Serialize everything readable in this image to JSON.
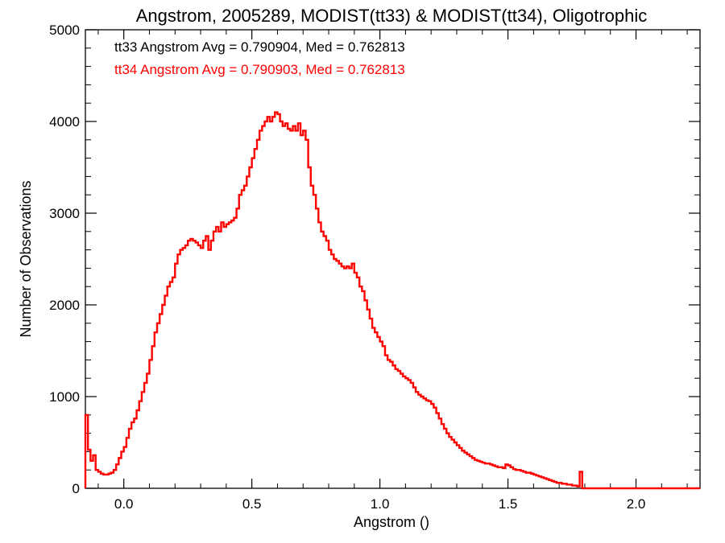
{
  "chart_data": {
    "type": "line",
    "title": "Angstrom, 2005289, MODIST(tt33) & MODIST(tt34), Oligotrophic",
    "xlabel": "Angstrom ()",
    "ylabel": "Number of Observations",
    "xlim": [
      -0.15,
      2.25
    ],
    "ylim": [
      0,
      5000
    ],
    "x_ticks": [
      0.0,
      0.5,
      1.0,
      1.5,
      2.0
    ],
    "x_tick_labels": [
      "0.0",
      "0.5",
      "1.0",
      "1.5",
      "2.0"
    ],
    "y_ticks": [
      0,
      1000,
      2000,
      3000,
      4000,
      5000
    ],
    "y_tick_labels": [
      "0",
      "1000",
      "2000",
      "3000",
      "4000",
      "5000"
    ],
    "grid": false,
    "style": "step histogram",
    "annotations": [
      {
        "text": "tt33 Angstrom Avg = 0.790904, Med = 0.762813",
        "color": "#000000"
      },
      {
        "text": "tt34 Angstrom Avg = 0.790903, Med = 0.762813",
        "color": "#ff0000"
      }
    ],
    "series": [
      {
        "color": "#ff0000",
        "x": [
          -0.15,
          -0.14,
          -0.13,
          -0.12,
          -0.11,
          -0.1,
          -0.09,
          -0.08,
          -0.07,
          -0.06,
          -0.05,
          -0.04,
          -0.03,
          -0.02,
          -0.01,
          0.0,
          0.01,
          0.02,
          0.03,
          0.04,
          0.05,
          0.06,
          0.07,
          0.08,
          0.09,
          0.1,
          0.11,
          0.12,
          0.13,
          0.14,
          0.15,
          0.16,
          0.17,
          0.18,
          0.19,
          0.2,
          0.21,
          0.22,
          0.23,
          0.24,
          0.25,
          0.26,
          0.27,
          0.28,
          0.29,
          0.3,
          0.31,
          0.32,
          0.33,
          0.34,
          0.35,
          0.36,
          0.37,
          0.38,
          0.39,
          0.4,
          0.41,
          0.42,
          0.43,
          0.44,
          0.45,
          0.46,
          0.47,
          0.48,
          0.49,
          0.5,
          0.51,
          0.52,
          0.53,
          0.54,
          0.55,
          0.56,
          0.57,
          0.58,
          0.59,
          0.6,
          0.61,
          0.62,
          0.63,
          0.64,
          0.65,
          0.66,
          0.67,
          0.68,
          0.69,
          0.7,
          0.71,
          0.72,
          0.73,
          0.74,
          0.75,
          0.76,
          0.77,
          0.78,
          0.79,
          0.8,
          0.81,
          0.82,
          0.83,
          0.84,
          0.85,
          0.86,
          0.87,
          0.88,
          0.89,
          0.9,
          0.91,
          0.92,
          0.93,
          0.94,
          0.95,
          0.96,
          0.97,
          0.98,
          0.99,
          1.0,
          1.01,
          1.02,
          1.03,
          1.04,
          1.05,
          1.06,
          1.07,
          1.08,
          1.09,
          1.1,
          1.11,
          1.12,
          1.13,
          1.14,
          1.15,
          1.16,
          1.17,
          1.18,
          1.19,
          1.2,
          1.21,
          1.22,
          1.23,
          1.24,
          1.25,
          1.26,
          1.27,
          1.28,
          1.29,
          1.3,
          1.31,
          1.32,
          1.33,
          1.34,
          1.35,
          1.36,
          1.37,
          1.38,
          1.39,
          1.4,
          1.41,
          1.42,
          1.43,
          1.44,
          1.45,
          1.46,
          1.47,
          1.48,
          1.49,
          1.5,
          1.51,
          1.52,
          1.53,
          1.54,
          1.55,
          1.56,
          1.57,
          1.58,
          1.59,
          1.6,
          1.61,
          1.62,
          1.63,
          1.64,
          1.65,
          1.66,
          1.67,
          1.68,
          1.69,
          1.7,
          1.71,
          1.72,
          1.73,
          1.74,
          1.75,
          1.76,
          1.77,
          1.78,
          1.79,
          1.8,
          1.81,
          1.82,
          1.83,
          1.84,
          1.85,
          1.86,
          1.87,
          1.88,
          1.89,
          1.9,
          1.91,
          1.92,
          1.93,
          1.94,
          1.95,
          1.96,
          1.97,
          1.98,
          1.99,
          2.0,
          2.01,
          2.02,
          2.03,
          2.04,
          2.05,
          2.06,
          2.07,
          2.08,
          2.09,
          2.1,
          2.11,
          2.12,
          2.13,
          2.14,
          2.15,
          2.16,
          2.17,
          2.18,
          2.19,
          2.2,
          2.21,
          2.22,
          2.23,
          2.24
        ],
        "values": [
          800,
          420,
          300,
          360,
          200,
          180,
          160,
          150,
          150,
          160,
          170,
          200,
          260,
          330,
          400,
          450,
          550,
          650,
          720,
          760,
          850,
          950,
          1050,
          1150,
          1250,
          1400,
          1550,
          1700,
          1800,
          1900,
          2000,
          2100,
          2200,
          2250,
          2300,
          2450,
          2550,
          2600,
          2620,
          2650,
          2700,
          2720,
          2700,
          2680,
          2650,
          2620,
          2700,
          2750,
          2600,
          2700,
          2800,
          2850,
          2800,
          2900,
          2850,
          2880,
          2900,
          2920,
          2950,
          3050,
          3200,
          3250,
          3300,
          3400,
          3500,
          3600,
          3700,
          3800,
          3900,
          3950,
          4000,
          4050,
          4000,
          4050,
          4100,
          4080,
          4000,
          3950,
          3980,
          3920,
          3900,
          3950,
          3900,
          3980,
          3850,
          3900,
          3800,
          3500,
          3300,
          3200,
          3050,
          2900,
          2800,
          2750,
          2700,
          2600,
          2550,
          2500,
          2480,
          2450,
          2420,
          2400,
          2420,
          2400,
          2450,
          2350,
          2300,
          2200,
          2150,
          2050,
          1950,
          1850,
          1750,
          1700,
          1650,
          1600,
          1550,
          1450,
          1400,
          1380,
          1340,
          1300,
          1280,
          1250,
          1220,
          1200,
          1180,
          1150,
          1100,
          1050,
          1020,
          1000,
          980,
          960,
          950,
          920,
          880,
          820,
          760,
          700,
          650,
          600,
          560,
          530,
          500,
          470,
          440,
          410,
          390,
          370,
          350,
          330,
          310,
          300,
          290,
          280,
          270,
          270,
          260,
          250,
          240,
          230,
          230,
          220,
          260,
          250,
          230,
          210,
          200,
          200,
          190,
          180,
          170,
          170,
          160,
          150,
          140,
          130,
          120,
          110,
          100,
          90,
          80,
          70,
          60,
          60,
          50,
          50,
          40,
          40,
          30,
          30,
          20,
          180,
          0,
          0,
          0,
          0,
          0,
          0,
          0,
          0,
          0,
          0,
          0,
          0,
          0,
          0,
          0,
          0,
          0,
          0,
          0,
          0,
          0,
          0,
          0,
          0,
          0,
          0,
          0,
          0,
          0,
          0,
          0,
          0,
          0,
          0,
          0,
          0,
          0,
          0,
          0,
          0,
          0,
          0,
          0,
          0,
          0,
          0
        ]
      }
    ]
  }
}
